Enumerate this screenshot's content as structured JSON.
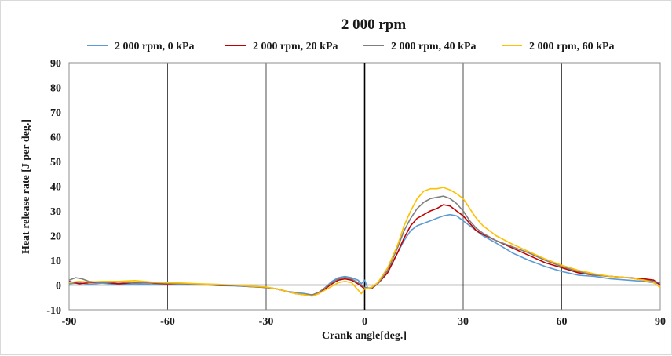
{
  "chart_data": {
    "type": "line",
    "title": "2 000 rpm",
    "xlabel": "Crank angle[deg.]",
    "ylabel": "Heat release rate [J per deg.]",
    "xlim": [
      -90,
      90
    ],
    "ylim": [
      -10,
      90
    ],
    "x_ticks": [
      "-90",
      "-60",
      "-30",
      "0",
      "30",
      "60",
      "90"
    ],
    "y_ticks": [
      "-10",
      "0",
      "10",
      "20",
      "30",
      "40",
      "50",
      "60",
      "70",
      "80",
      "90"
    ],
    "grid": "vertical",
    "legend_position": "top",
    "series": [
      {
        "name": "2 000 rpm, 0 kPa",
        "color": "#5b9bd5",
        "points": [
          [
            -90,
            0.5
          ],
          [
            -87,
            1.0
          ],
          [
            -84,
            0.3
          ],
          [
            -80,
            0.8
          ],
          [
            -75,
            0.2
          ],
          [
            -70,
            0.5
          ],
          [
            -65,
            0.2
          ],
          [
            -60,
            0.5
          ],
          [
            -55,
            0.1
          ],
          [
            -50,
            0.3
          ],
          [
            -45,
            -0.2
          ],
          [
            -40,
            -0.3
          ],
          [
            -35,
            -0.6
          ],
          [
            -30,
            -1.0
          ],
          [
            -27,
            -1.5
          ],
          [
            -24,
            -2.5
          ],
          [
            -21,
            -3.0
          ],
          [
            -18,
            -3.5
          ],
          [
            -16,
            -4.0
          ],
          [
            -14,
            -3.5
          ],
          [
            -12,
            -1.0
          ],
          [
            -10,
            1.5
          ],
          [
            -8,
            3.0
          ],
          [
            -6,
            3.5
          ],
          [
            -4,
            3.0
          ],
          [
            -2,
            2.0
          ],
          [
            -1,
            0.5
          ],
          [
            0,
            2.0
          ],
          [
            1,
            -1.5
          ],
          [
            3,
            -0.5
          ],
          [
            5,
            2.0
          ],
          [
            8,
            8.0
          ],
          [
            10,
            13.0
          ],
          [
            12,
            18.0
          ],
          [
            14,
            22.0
          ],
          [
            16,
            24.0
          ],
          [
            18,
            25.0
          ],
          [
            20,
            26.0
          ],
          [
            22,
            27.0
          ],
          [
            24,
            28.0
          ],
          [
            26,
            28.5
          ],
          [
            28,
            28.0
          ],
          [
            30,
            26.0
          ],
          [
            32,
            24.0
          ],
          [
            34,
            22.0
          ],
          [
            36,
            20.0
          ],
          [
            40,
            17.0
          ],
          [
            45,
            13.0
          ],
          [
            50,
            10.0
          ],
          [
            55,
            7.5
          ],
          [
            60,
            5.5
          ],
          [
            65,
            4.0
          ],
          [
            70,
            3.5
          ],
          [
            75,
            2.5
          ],
          [
            80,
            2.0
          ],
          [
            85,
            1.5
          ],
          [
            88,
            1.0
          ],
          [
            90,
            0.5
          ]
        ]
      },
      {
        "name": "2 000 rpm, 20 kPa",
        "color": "#c00000",
        "points": [
          [
            -90,
            1.5
          ],
          [
            -87,
            0.5
          ],
          [
            -84,
            1.0
          ],
          [
            -80,
            1.2
          ],
          [
            -75,
            0.5
          ],
          [
            -70,
            1.0
          ],
          [
            -65,
            0.8
          ],
          [
            -60,
            0.5
          ],
          [
            -55,
            0.6
          ],
          [
            -50,
            0.2
          ],
          [
            -45,
            0.0
          ],
          [
            -40,
            -0.2
          ],
          [
            -35,
            -0.5
          ],
          [
            -30,
            -1.0
          ],
          [
            -27,
            -1.5
          ],
          [
            -24,
            -2.5
          ],
          [
            -21,
            -3.5
          ],
          [
            -18,
            -4.0
          ],
          [
            -16,
            -4.2
          ],
          [
            -14,
            -3.5
          ],
          [
            -12,
            -1.5
          ],
          [
            -10,
            0.5
          ],
          [
            -8,
            2.0
          ],
          [
            -6,
            2.5
          ],
          [
            -4,
            2.0
          ],
          [
            -2,
            0.5
          ],
          [
            0,
            -1.5
          ],
          [
            2,
            -1.5
          ],
          [
            4,
            0.5
          ],
          [
            7,
            5.0
          ],
          [
            10,
            13.0
          ],
          [
            12,
            19.0
          ],
          [
            14,
            24.0
          ],
          [
            16,
            27.0
          ],
          [
            18,
            28.5
          ],
          [
            20,
            30.0
          ],
          [
            22,
            31.0
          ],
          [
            24,
            32.5
          ],
          [
            26,
            32.0
          ],
          [
            28,
            30.0
          ],
          [
            30,
            28.0
          ],
          [
            32,
            25.0
          ],
          [
            34,
            22.0
          ],
          [
            36,
            20.5
          ],
          [
            40,
            18.0
          ],
          [
            45,
            15.0
          ],
          [
            50,
            12.0
          ],
          [
            55,
            9.0
          ],
          [
            60,
            7.0
          ],
          [
            65,
            5.0
          ],
          [
            70,
            4.0
          ],
          [
            75,
            3.5
          ],
          [
            80,
            3.0
          ],
          [
            85,
            2.5
          ],
          [
            88,
            2.0
          ],
          [
            90,
            0.0
          ]
        ]
      },
      {
        "name": "2 000 rpm, 40 kPa",
        "color": "#7f7f7f",
        "points": [
          [
            -90,
            2.0
          ],
          [
            -88,
            3.0
          ],
          [
            -86,
            2.5
          ],
          [
            -84,
            1.5
          ],
          [
            -80,
            1.0
          ],
          [
            -75,
            1.2
          ],
          [
            -70,
            0.8
          ],
          [
            -65,
            1.0
          ],
          [
            -60,
            0.7
          ],
          [
            -55,
            0.5
          ],
          [
            -50,
            0.3
          ],
          [
            -45,
            0.2
          ],
          [
            -40,
            -0.2
          ],
          [
            -35,
            -0.6
          ],
          [
            -30,
            -1.0
          ],
          [
            -27,
            -1.5
          ],
          [
            -24,
            -2.5
          ],
          [
            -21,
            -3.5
          ],
          [
            -18,
            -3.8
          ],
          [
            -16,
            -4.0
          ],
          [
            -14,
            -3.0
          ],
          [
            -12,
            -1.0
          ],
          [
            -10,
            1.0
          ],
          [
            -8,
            2.5
          ],
          [
            -6,
            3.0
          ],
          [
            -4,
            2.5
          ],
          [
            -2,
            1.0
          ],
          [
            0,
            -1.0
          ],
          [
            2,
            -1.2
          ],
          [
            4,
            0.5
          ],
          [
            7,
            6.0
          ],
          [
            10,
            15.0
          ],
          [
            12,
            22.0
          ],
          [
            14,
            27.0
          ],
          [
            16,
            31.0
          ],
          [
            18,
            33.5
          ],
          [
            20,
            35.0
          ],
          [
            22,
            35.5
          ],
          [
            24,
            36.0
          ],
          [
            26,
            35.0
          ],
          [
            28,
            33.0
          ],
          [
            30,
            30.0
          ],
          [
            32,
            26.0
          ],
          [
            34,
            23.0
          ],
          [
            36,
            21.0
          ],
          [
            40,
            18.0
          ],
          [
            45,
            15.5
          ],
          [
            50,
            13.0
          ],
          [
            55,
            10.0
          ],
          [
            60,
            7.5
          ],
          [
            65,
            5.5
          ],
          [
            70,
            4.0
          ],
          [
            75,
            3.5
          ],
          [
            80,
            3.0
          ],
          [
            85,
            2.0
          ],
          [
            88,
            1.5
          ],
          [
            90,
            1.0
          ]
        ]
      },
      {
        "name": "2 000 rpm, 60 kPa",
        "color": "#ffc000",
        "points": [
          [
            -90,
            1.0
          ],
          [
            -87,
            1.5
          ],
          [
            -84,
            1.2
          ],
          [
            -80,
            1.5
          ],
          [
            -75,
            1.5
          ],
          [
            -70,
            1.8
          ],
          [
            -65,
            1.2
          ],
          [
            -60,
            1.0
          ],
          [
            -55,
            0.8
          ],
          [
            -50,
            0.5
          ],
          [
            -45,
            0.3
          ],
          [
            -40,
            0.0
          ],
          [
            -35,
            -0.4
          ],
          [
            -30,
            -0.8
          ],
          [
            -27,
            -1.5
          ],
          [
            -24,
            -2.5
          ],
          [
            -21,
            -3.5
          ],
          [
            -18,
            -4.0
          ],
          [
            -16,
            -4.5
          ],
          [
            -14,
            -3.5
          ],
          [
            -12,
            -2.0
          ],
          [
            -10,
            -0.5
          ],
          [
            -8,
            1.0
          ],
          [
            -6,
            1.5
          ],
          [
            -4,
            1.0
          ],
          [
            -2,
            -2.0
          ],
          [
            -1,
            -3.5
          ],
          [
            0,
            -1.5
          ],
          [
            2,
            -1.0
          ],
          [
            4,
            1.0
          ],
          [
            7,
            7.0
          ],
          [
            10,
            16.0
          ],
          [
            12,
            24.0
          ],
          [
            14,
            30.0
          ],
          [
            16,
            35.0
          ],
          [
            18,
            38.0
          ],
          [
            20,
            39.0
          ],
          [
            22,
            39.0
          ],
          [
            24,
            39.5
          ],
          [
            26,
            38.5
          ],
          [
            28,
            37.0
          ],
          [
            30,
            35.0
          ],
          [
            32,
            31.0
          ],
          [
            34,
            27.0
          ],
          [
            36,
            24.0
          ],
          [
            40,
            20.0
          ],
          [
            45,
            16.5
          ],
          [
            50,
            13.5
          ],
          [
            55,
            10.5
          ],
          [
            60,
            8.0
          ],
          [
            65,
            6.0
          ],
          [
            70,
            4.5
          ],
          [
            75,
            3.5
          ],
          [
            80,
            3.0
          ],
          [
            85,
            2.0
          ],
          [
            88,
            1.0
          ],
          [
            90,
            -1.0
          ]
        ]
      }
    ]
  }
}
